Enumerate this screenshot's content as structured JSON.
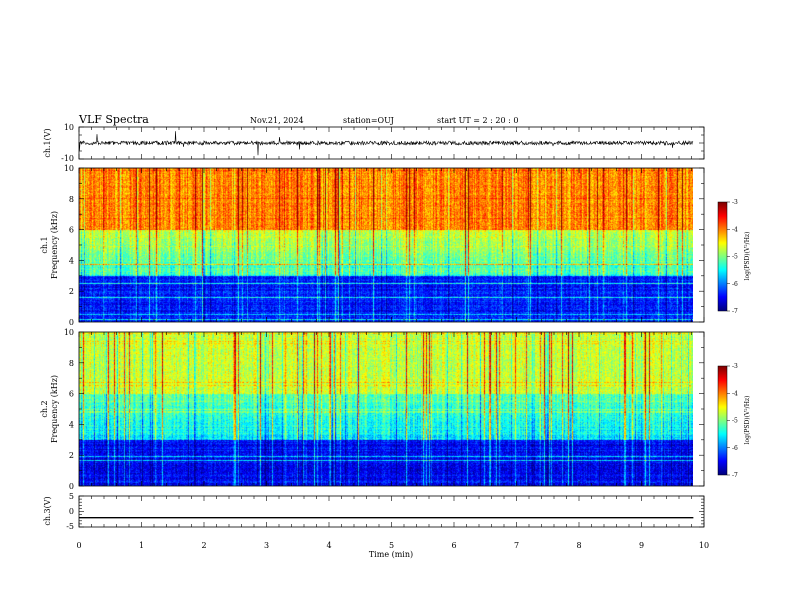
{
  "header": {
    "title": "VLF Spectra",
    "date": "Nov.21, 2024",
    "station": "station=OUJ",
    "start": "start  UT =   2 : 20 : 0"
  },
  "chart_data": [
    {
      "type": "line",
      "panel": "ch1-waveform",
      "ylabel": "ch.1(V)",
      "ylim": [
        -10,
        10
      ],
      "yticks": [
        "10",
        "-10"
      ],
      "baseline": 0,
      "noise_amplitude": 1.2,
      "spike_amplitude": 7
    },
    {
      "type": "heatmap",
      "panel": "ch1-spectrogram",
      "ylabel": "ch.1\nFrequency (kHz)",
      "ylabel_line1": "ch.1",
      "ylabel_line2": "Frequency (kHz)",
      "ylim": [
        0,
        10
      ],
      "yticks": [
        "0",
        "2",
        "4",
        "6",
        "8",
        "10"
      ],
      "xlim_min": [
        0,
        9.83
      ],
      "colorbar": {
        "label": "log(PSD)(V²/Hz)",
        "range": [
          -7,
          -3
        ],
        "ticks": [
          "-7",
          "-6",
          "-5",
          "-4",
          "-3"
        ]
      },
      "profile": {
        "high_band_khz": [
          6,
          10
        ],
        "high_band_level": -4.0,
        "mid_band_level": -5.3,
        "low_band_level": -6.4
      }
    },
    {
      "type": "heatmap",
      "panel": "ch2-spectrogram",
      "ylabel": "ch.2\nFrequency (kHz)",
      "ylabel_line1": "ch.2",
      "ylabel_line2": "Frequency (kHz)",
      "ylim": [
        0,
        10
      ],
      "yticks": [
        "0",
        "2",
        "4",
        "6",
        "8",
        "10"
      ],
      "xlim_min": [
        0,
        9.83
      ],
      "colorbar": {
        "label": "log(PSD)(V²/Hz)",
        "range": [
          -7,
          -3
        ],
        "ticks": [
          "-7",
          "-6",
          "-5",
          "-4",
          "-3"
        ]
      },
      "profile": {
        "high_band_khz": [
          6,
          10
        ],
        "high_band_level": -4.7,
        "mid_band_level": -5.6,
        "low_band_level": -6.5
      }
    },
    {
      "type": "line",
      "panel": "ch3-waveform",
      "ylabel": "ch.3(V)",
      "ylim": [
        -5,
        5
      ],
      "yticks": [
        "5",
        "0",
        "-5"
      ],
      "baseline": -2
    }
  ],
  "x_axis": {
    "label": "Time (min)",
    "range": [
      0,
      10
    ],
    "ticks": [
      "0",
      "1",
      "2",
      "3",
      "4",
      "5",
      "6",
      "7",
      "8",
      "9",
      "10"
    ]
  }
}
